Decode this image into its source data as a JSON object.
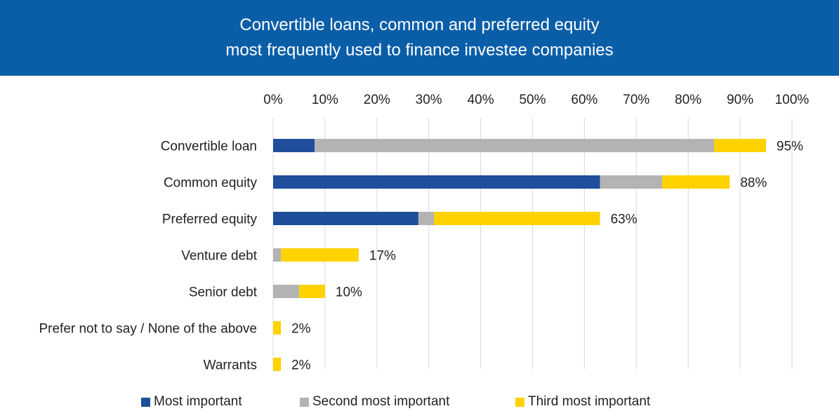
{
  "header": {
    "title_line1": "Convertible loans, common and preferred equity",
    "title_line2": "most frequently used to finance investee companies"
  },
  "chart_data": {
    "type": "bar",
    "orientation": "horizontal",
    "stacked": true,
    "categories": [
      "Convertible loan",
      "Common equity",
      "Preferred equity",
      "Venture debt",
      "Senior debt",
      "Prefer not to say / None of the above",
      "Warrants"
    ],
    "series": [
      {
        "name": "Most important",
        "color": "#1f4e9c",
        "values": [
          8,
          63,
          28,
          0,
          0,
          0,
          0
        ]
      },
      {
        "name": "Second most important",
        "color": "#b3b3b3",
        "values": [
          77,
          12,
          3,
          1.5,
          5,
          0,
          0
        ]
      },
      {
        "name": "Third most important",
        "color": "#ffd200",
        "values": [
          10,
          13,
          32,
          15,
          5,
          1.5,
          1.5
        ]
      }
    ],
    "totals": [
      "95%",
      "88%",
      "63%",
      "17%",
      "10%",
      "2%",
      "2%"
    ],
    "xlim": [
      0,
      100
    ],
    "x_ticks": [
      "0%",
      "10%",
      "20%",
      "30%",
      "40%",
      "50%",
      "60%",
      "70%",
      "80%",
      "90%",
      "100%"
    ],
    "grid": true,
    "legend_position": "bottom"
  }
}
